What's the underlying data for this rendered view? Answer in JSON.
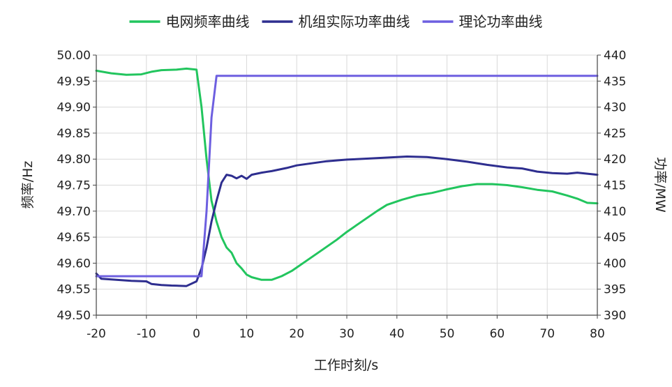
{
  "chart_data": {
    "type": "line",
    "title": "",
    "xlabel": "工作时刻/s",
    "ylabel_left": "频率/Hz",
    "ylabel_right": "功率/MW",
    "xlim": [
      -20,
      80
    ],
    "ylim_left": [
      49.5,
      50.0
    ],
    "ylim_right": [
      390,
      440
    ],
    "x_ticks": [
      "-20",
      "-10",
      "0",
      "10",
      "20",
      "30",
      "40",
      "50",
      "60",
      "70",
      "80"
    ],
    "y_left_ticks": [
      "50.00",
      "49.95",
      "49.90",
      "49.85",
      "49.80",
      "49.75",
      "49.70",
      "49.65",
      "49.60",
      "49.55",
      "49.50"
    ],
    "y_right_ticks": [
      "440",
      "435",
      "430",
      "425",
      "420",
      "415",
      "410",
      "405",
      "400",
      "395",
      "390"
    ],
    "grid": true,
    "legend_position": "top",
    "series": [
      {
        "name": "电网频率曲线",
        "axis": "left",
        "color": "#22c55e",
        "points": [
          [
            -20,
            49.97
          ],
          [
            -17,
            49.965
          ],
          [
            -14,
            49.962
          ],
          [
            -11,
            49.963
          ],
          [
            -9,
            49.968
          ],
          [
            -7,
            49.971
          ],
          [
            -4,
            49.972
          ],
          [
            -2,
            49.974
          ],
          [
            0,
            49.972
          ],
          [
            1,
            49.9
          ],
          [
            2,
            49.8
          ],
          [
            3,
            49.72
          ],
          [
            4,
            49.68
          ],
          [
            5,
            49.65
          ],
          [
            6,
            49.63
          ],
          [
            7,
            49.62
          ],
          [
            8,
            49.6
          ],
          [
            9,
            49.59
          ],
          [
            10,
            49.578
          ],
          [
            11,
            49.573
          ],
          [
            13,
            49.568
          ],
          [
            15,
            49.568
          ],
          [
            17,
            49.575
          ],
          [
            19,
            49.585
          ],
          [
            22,
            49.605
          ],
          [
            25,
            49.625
          ],
          [
            28,
            49.645
          ],
          [
            30,
            49.66
          ],
          [
            33,
            49.68
          ],
          [
            36,
            49.7
          ],
          [
            38,
            49.712
          ],
          [
            41,
            49.722
          ],
          [
            44,
            49.73
          ],
          [
            47,
            49.735
          ],
          [
            50,
            49.742
          ],
          [
            53,
            49.748
          ],
          [
            56,
            49.752
          ],
          [
            59,
            49.752
          ],
          [
            62,
            49.75
          ],
          [
            65,
            49.746
          ],
          [
            68,
            49.741
          ],
          [
            71,
            49.738
          ],
          [
            74,
            49.73
          ],
          [
            76,
            49.724
          ],
          [
            78,
            49.716
          ],
          [
            80,
            49.715
          ]
        ]
      },
      {
        "name": "机组实际功率曲线",
        "axis": "right",
        "color": "#2e2e8f",
        "points": [
          [
            -20,
            398
          ],
          [
            -19,
            397
          ],
          [
            -16,
            396.8
          ],
          [
            -13,
            396.6
          ],
          [
            -10,
            396.5
          ],
          [
            -9,
            396
          ],
          [
            -7,
            395.8
          ],
          [
            -5,
            395.7
          ],
          [
            -2,
            395.6
          ],
          [
            0,
            396.5
          ],
          [
            1,
            399
          ],
          [
            2,
            403
          ],
          [
            3,
            408
          ],
          [
            4,
            412
          ],
          [
            5,
            415.5
          ],
          [
            6,
            417
          ],
          [
            7,
            416.8
          ],
          [
            8,
            416.3
          ],
          [
            9,
            416.8
          ],
          [
            10,
            416.2
          ],
          [
            11,
            417
          ],
          [
            13,
            417.4
          ],
          [
            15,
            417.7
          ],
          [
            18,
            418.3
          ],
          [
            20,
            418.8
          ],
          [
            23,
            419.2
          ],
          [
            26,
            419.6
          ],
          [
            30,
            419.9
          ],
          [
            34,
            420.1
          ],
          [
            38,
            420.3
          ],
          [
            42,
            420.5
          ],
          [
            46,
            420.4
          ],
          [
            50,
            420
          ],
          [
            54,
            419.5
          ],
          [
            58,
            418.9
          ],
          [
            62,
            418.4
          ],
          [
            65,
            418.2
          ],
          [
            68,
            417.6
          ],
          [
            71,
            417.3
          ],
          [
            74,
            417.2
          ],
          [
            76,
            417.4
          ],
          [
            80,
            417
          ]
        ]
      },
      {
        "name": "理论功率曲线",
        "axis": "right",
        "color": "#6d5fe0",
        "points": [
          [
            -20,
            397.5
          ],
          [
            0,
            397.5
          ],
          [
            1,
            397.5
          ],
          [
            2,
            410
          ],
          [
            3,
            428
          ],
          [
            4,
            436
          ],
          [
            6,
            436
          ],
          [
            80,
            436
          ]
        ]
      }
    ]
  }
}
